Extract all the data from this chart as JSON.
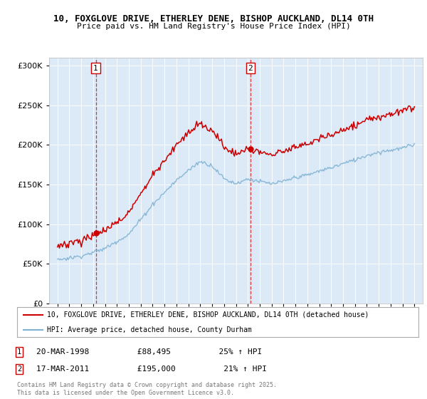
{
  "title1": "10, FOXGLOVE DRIVE, ETHERLEY DENE, BISHOP AUCKLAND, DL14 0TH",
  "title2": "Price paid vs. HM Land Registry's House Price Index (HPI)",
  "background_color": "#dce9f7",
  "red_line_color": "#cc0000",
  "blue_line_color": "#7fb3d3",
  "legend_label1": "10, FOXGLOVE DRIVE, ETHERLEY DENE, BISHOP AUCKLAND, DL14 0TH (detached house)",
  "legend_label2": "HPI: Average price, detached house, County Durham",
  "footer": "Contains HM Land Registry data © Crown copyright and database right 2025.\nThis data is licensed under the Open Government Licence v3.0.",
  "ylim": [
    0,
    310000
  ],
  "yticks": [
    0,
    50000,
    100000,
    150000,
    200000,
    250000,
    300000
  ],
  "sale1_x": 1998.22,
  "sale1_price": 88495,
  "sale1_date": "20-MAR-1998",
  "sale1_label": "25% ↑ HPI",
  "sale2_x": 2011.22,
  "sale2_price": 195000,
  "sale2_date": "17-MAR-2011",
  "sale2_label": "21% ↑ HPI",
  "xmin": 1995,
  "xmax": 2025
}
